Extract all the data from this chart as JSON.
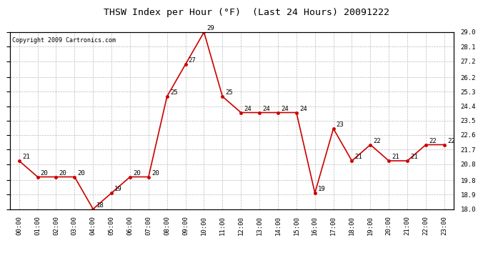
{
  "title": "THSW Index per Hour (°F)  (Last 24 Hours) 20091222",
  "copyright": "Copyright 2009 Cartronics.com",
  "hours": [
    "00:00",
    "01:00",
    "02:00",
    "03:00",
    "04:00",
    "05:00",
    "06:00",
    "07:00",
    "08:00",
    "09:00",
    "10:00",
    "11:00",
    "12:00",
    "13:00",
    "14:00",
    "15:00",
    "16:00",
    "17:00",
    "18:00",
    "19:00",
    "20:00",
    "21:00",
    "22:00",
    "23:00"
  ],
  "values": [
    21,
    20,
    20,
    20,
    18,
    19,
    20,
    20,
    25,
    27,
    29,
    25,
    24,
    24,
    24,
    24,
    19,
    23,
    21,
    22,
    21,
    21,
    22,
    22
  ],
  "ylim_min": 18.0,
  "ylim_max": 29.0,
  "yticks": [
    18.0,
    18.9,
    19.8,
    20.8,
    21.7,
    22.6,
    23.5,
    24.4,
    25.3,
    26.2,
    27.2,
    28.1,
    29.0
  ],
  "line_color": "#cc0000",
  "marker_color": "#cc0000",
  "bg_color": "#ffffff",
  "grid_color": "#bbbbbb",
  "title_fontsize": 9.5,
  "label_fontsize": 6.5,
  "tick_fontsize": 6.5,
  "copyright_fontsize": 6.0
}
